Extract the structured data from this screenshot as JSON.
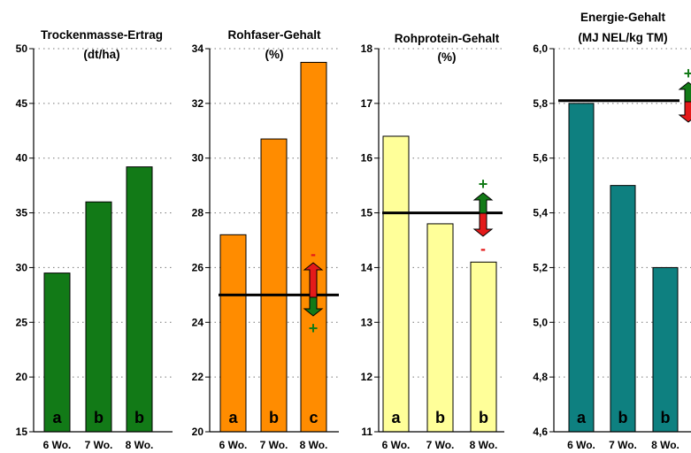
{
  "chart_data": [
    {
      "type": "bar",
      "title": [
        "Trockenmasse-Ertrag",
        "(dt/ha)"
      ],
      "categories": [
        "6 Wo.",
        "7 Wo.",
        "8 Wo."
      ],
      "values": [
        29.5,
        36,
        39.2
      ],
      "significance": [
        "a",
        "b",
        "b"
      ],
      "ylim": [
        15,
        50
      ],
      "yticks": [
        "15",
        "20",
        "25",
        "30",
        "35",
        "40",
        "45",
        "50"
      ],
      "bar_color": "#127A17",
      "reference_line": null,
      "indicator": null
    },
    {
      "type": "bar",
      "title": [
        "Rohfaser-Gehalt",
        "(%)"
      ],
      "categories": [
        "6 Wo.",
        "7 Wo.",
        "8 Wo."
      ],
      "values": [
        27.2,
        30.7,
        33.5
      ],
      "significance": [
        "a",
        "b",
        "c"
      ],
      "ylim": [
        20,
        34
      ],
      "yticks": [
        "20",
        "22",
        "24",
        "26",
        "28",
        "30",
        "32",
        "34"
      ],
      "bar_color": "#FF8C00",
      "reference_line": 25,
      "indicator": {
        "upper": "red",
        "lower": "green",
        "top_sign": "-",
        "bottom_sign": "+"
      }
    },
    {
      "type": "bar",
      "title": [
        "Rohprotein-Gehalt",
        "(%)"
      ],
      "categories": [
        "6 Wo.",
        "7 Wo.",
        "8 Wo."
      ],
      "values": [
        16.4,
        14.8,
        14.1
      ],
      "significance": [
        "a",
        "b",
        "b"
      ],
      "ylim": [
        11,
        18
      ],
      "yticks": [
        "11",
        "12",
        "13",
        "14",
        "15",
        "16",
        "17",
        "18"
      ],
      "bar_color": "#FFFF99",
      "reference_line": 15,
      "indicator": {
        "upper": "green",
        "lower": "red",
        "top_sign": "+",
        "bottom_sign": "-"
      }
    },
    {
      "type": "bar",
      "title": [
        "Energie-Gehalt",
        "(MJ NEL/kg TM)"
      ],
      "categories": [
        "6 Wo.",
        "7 Wo.",
        "8 Wo."
      ],
      "values": [
        5.8,
        5.5,
        5.2
      ],
      "significance": [
        "a",
        "b",
        "b"
      ],
      "ylim": [
        4.6,
        6.0
      ],
      "yticks": [
        "4,6",
        "4,8",
        "5,0",
        "5,2",
        "5,4",
        "5,6",
        "5,8",
        "6,0"
      ],
      "bar_color": "#0E8080",
      "reference_line": 5.81,
      "indicator": {
        "upper": "green",
        "lower": "red",
        "top_sign": "+",
        "bottom_sign": ""
      }
    }
  ]
}
